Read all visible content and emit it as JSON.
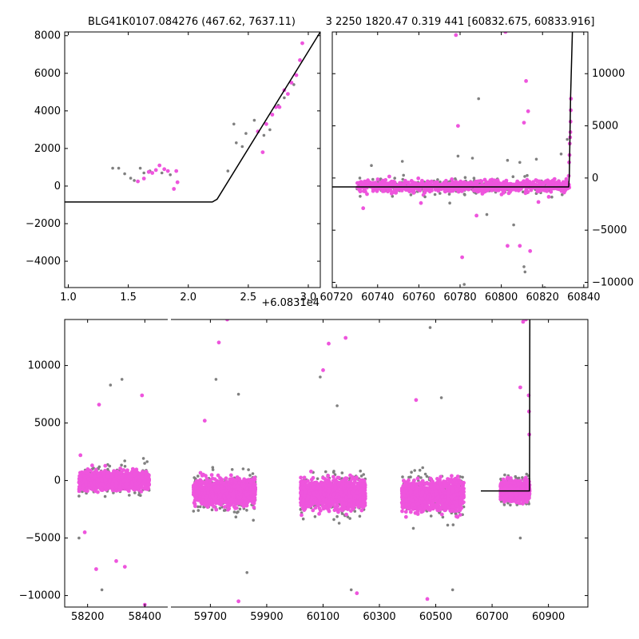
{
  "figure": {
    "title_left": "BLG41K0107.084276 (467.62, 7637.11)",
    "title_right": "3 2250 1820.47 0.319 441 [60832.675, 60833.916]",
    "x_offset_label": "+6.0831e4"
  },
  "colors": {
    "pink": "#ee55dd",
    "gray": "#808080",
    "model_line": "#000000"
  },
  "chart_data": [
    {
      "id": "zoom_peak",
      "type": "scatter",
      "title": "BLG41K0107.084276 (467.62, 7637.11)",
      "x_offset": 60831,
      "xlim": [
        0.97,
        3.1
      ],
      "ylim": [
        -5400,
        8200
      ],
      "xticks": [
        1.0,
        1.5,
        2.0,
        2.5,
        3.0
      ],
      "xtick_labels": [
        "1.0",
        "1.5",
        "2.0",
        "2.5",
        "3.0"
      ],
      "yticks": [
        -4000,
        -2000,
        0,
        2000,
        4000,
        6000,
        8000
      ],
      "ytick_labels": [
        "−4000",
        "−2000",
        "0",
        "2000",
        "4000",
        "6000",
        "8000"
      ],
      "y_axis_side": "left",
      "series": [
        {
          "color": "gray",
          "points": [
            [
              1.37,
              950
            ],
            [
              1.42,
              950
            ],
            [
              1.47,
              650
            ],
            [
              1.52,
              420
            ],
            [
              1.55,
              300
            ],
            [
              1.6,
              950
            ],
            [
              1.63,
              700
            ],
            [
              1.68,
              800
            ],
            [
              1.78,
              700
            ],
            [
              1.85,
              600
            ],
            [
              2.33,
              800
            ],
            [
              2.38,
              3300
            ],
            [
              2.4,
              2300
            ],
            [
              2.45,
              2100
            ],
            [
              2.48,
              2800
            ],
            [
              2.55,
              3500
            ],
            [
              2.63,
              2700
            ],
            [
              2.68,
              3000
            ],
            [
              2.75,
              4300
            ],
            [
              2.8,
              4700
            ],
            [
              2.88,
              5400
            ]
          ]
        },
        {
          "color": "pink",
          "points": [
            [
              1.58,
              250
            ],
            [
              1.63,
              400
            ],
            [
              1.67,
              750
            ],
            [
              1.7,
              700
            ],
            [
              1.73,
              850
            ],
            [
              1.76,
              1100
            ],
            [
              1.8,
              900
            ],
            [
              1.83,
              800
            ],
            [
              1.88,
              -150
            ],
            [
              1.9,
              800
            ],
            [
              1.91,
              200
            ],
            [
              2.58,
              2900
            ],
            [
              2.62,
              1800
            ],
            [
              2.65,
              3300
            ],
            [
              2.7,
              3800
            ],
            [
              2.73,
              4200
            ],
            [
              2.76,
              4200
            ],
            [
              2.8,
              5100
            ],
            [
              2.83,
              4900
            ],
            [
              2.86,
              5500
            ],
            [
              2.9,
              5900
            ],
            [
              2.93,
              6700
            ],
            [
              2.95,
              7600
            ]
          ]
        }
      ],
      "model": [
        [
          0.97,
          -850
        ],
        [
          2.2,
          -850
        ],
        [
          2.24,
          -700
        ],
        [
          3.1,
          8200
        ]
      ]
    },
    {
      "id": "zoom_season",
      "type": "scatter",
      "title": "3 2250 1820.47 0.319 441 [60832.675, 60833.916]",
      "xlim": [
        60718,
        60842
      ],
      "ylim": [
        -10500,
        14000
      ],
      "xticks": [
        60720,
        60740,
        60760,
        60780,
        60800,
        60820,
        60840
      ],
      "xtick_labels": [
        "60720",
        "60740",
        "60760",
        "60780",
        "60800",
        "60820",
        "60840"
      ],
      "yticks": [
        -10000,
        -5000,
        0,
        5000,
        10000
      ],
      "ytick_labels": [
        "−10000",
        "−5000",
        "0",
        "5000",
        "10000"
      ],
      "y_axis_side": "right",
      "series": [
        {
          "color": "gray",
          "points": [
            [
              60737,
              1200
            ],
            [
              60752,
              1600
            ],
            [
              60763,
              -1800
            ],
            [
              60775,
              -2400
            ],
            [
              60779,
              2100
            ],
            [
              60782,
              -10200
            ],
            [
              60786,
              1900
            ],
            [
              60789,
              7600
            ],
            [
              60793,
              -3500
            ],
            [
              60803,
              1700
            ],
            [
              60806,
              -4500
            ],
            [
              60809,
              1500
            ],
            [
              60811,
              -8500
            ],
            [
              60811.5,
              -9000
            ],
            [
              60817,
              1800
            ],
            [
              60821,
              -10500
            ],
            [
              60829,
              2300
            ],
            [
              60832,
              3700
            ]
          ]
        },
        {
          "color": "pink",
          "points": [
            [
              60733,
              -2900
            ],
            [
              60761,
              -2400
            ],
            [
              60778,
              13700
            ],
            [
              60779,
              5000
            ],
            [
              60781,
              -7600
            ],
            [
              60788,
              -3600
            ],
            [
              60802,
              14000
            ],
            [
              60803,
              -6500
            ],
            [
              60809,
              -6500
            ],
            [
              60811,
              5300
            ],
            [
              60812,
              9300
            ],
            [
              60813,
              6400
            ],
            [
              60814,
              -7000
            ],
            [
              60818,
              -2300
            ],
            [
              60823,
              -1800
            ],
            [
              60832.7,
              200
            ],
            [
              60832.9,
              1500
            ],
            [
              60833.1,
              2200
            ],
            [
              60833.2,
              3300
            ],
            [
              60833.4,
              3900
            ],
            [
              60833.5,
              4400
            ],
            [
              60833.6,
              5400
            ],
            [
              60833.7,
              6500
            ],
            [
              60833.8,
              7600
            ]
          ]
        }
      ],
      "band": {
        "x_range": [
          60730,
          60833
        ],
        "y_center": -800,
        "y_spread": 650
      },
      "model": [
        [
          60718,
          -850
        ],
        [
          60832.7,
          -850
        ],
        [
          60833.0,
          300
        ],
        [
          60833.6,
          7600
        ],
        [
          60834.5,
          14000
        ]
      ]
    },
    {
      "id": "full_lightcurve",
      "type": "scatter",
      "broken_x_axis": true,
      "left_panel": {
        "xlim": [
          58120,
          58480
        ],
        "xticks": [
          58200,
          58400
        ],
        "xtick_labels": [
          "58200",
          "58400"
        ]
      },
      "right_panel": {
        "xlim": [
          59560,
          61040
        ],
        "xticks": [
          59700,
          59900,
          60100,
          60300,
          60500,
          60700,
          60900
        ],
        "xtick_labels": [
          "59700",
          "59900",
          "60100",
          "60300",
          "60500",
          "60700",
          "60900"
        ]
      },
      "ylim": [
        -11000,
        14000
      ],
      "yticks": [
        -10000,
        -5000,
        0,
        5000,
        10000
      ],
      "ytick_labels": [
        "−10000",
        "−5000",
        "0",
        "5000",
        "10000"
      ],
      "seasons": [
        {
          "x_range": [
            58170,
            58415
          ],
          "y_center": 0,
          "y_spread": 900
        },
        {
          "x_range": [
            59640,
            59860
          ],
          "y_center": -1000,
          "y_spread": 1300
        },
        {
          "x_range": [
            60020,
            60250
          ],
          "y_center": -1200,
          "y_spread": 1400
        },
        {
          "x_range": [
            60380,
            60600
          ],
          "y_center": -1300,
          "y_spread": 1400
        },
        {
          "x_range": [
            60730,
            60833
          ],
          "y_center": -900,
          "y_spread": 900
        }
      ],
      "series": [
        {
          "color": "gray",
          "points": [
            [
              58280,
              8300
            ],
            [
              58320,
              8800
            ],
            [
              58170,
              -5000
            ],
            [
              58250,
              -9500
            ],
            [
              59720,
              8800
            ],
            [
              59800,
              7500
            ],
            [
              59830,
              -8000
            ],
            [
              60090,
              9000
            ],
            [
              60150,
              6500
            ],
            [
              60200,
              -9500
            ],
            [
              60480,
              13300
            ],
            [
              60520,
              7200
            ],
            [
              60560,
              -9500
            ],
            [
              60800,
              -5000
            ]
          ]
        },
        {
          "color": "pink",
          "points": [
            [
              58175,
              2200
            ],
            [
              58190,
              -4500
            ],
            [
              58230,
              -7700
            ],
            [
              58240,
              6600
            ],
            [
              58300,
              -7000
            ],
            [
              58330,
              -7500
            ],
            [
              58390,
              7400
            ],
            [
              58400,
              -10800
            ],
            [
              59680,
              5200
            ],
            [
              59730,
              12000
            ],
            [
              59760,
              14000
            ],
            [
              59800,
              -10500
            ],
            [
              60100,
              9600
            ],
            [
              60120,
              11900
            ],
            [
              60180,
              12400
            ],
            [
              60220,
              -9800
            ],
            [
              60430,
              7000
            ],
            [
              60470,
              -10300
            ],
            [
              60800,
              8100
            ],
            [
              60810,
              13800
            ],
            [
              60820,
              14000
            ],
            [
              60830,
              7400
            ],
            [
              60831,
              6000
            ],
            [
              60832,
              4000
            ]
          ]
        }
      ],
      "model": [
        [
          60660,
          -900
        ],
        [
          60832.7,
          -900
        ],
        [
          60833.0,
          300
        ],
        [
          60834,
          14000
        ]
      ]
    }
  ]
}
